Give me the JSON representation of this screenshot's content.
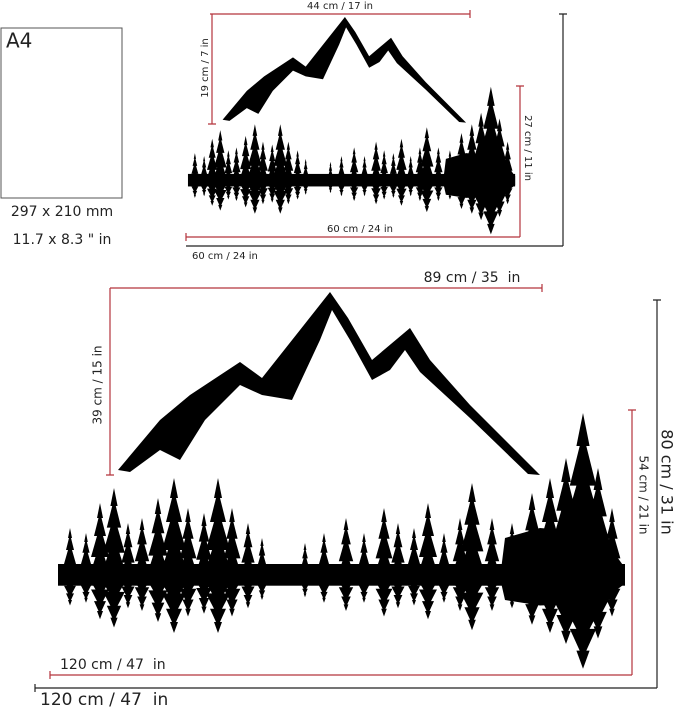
{
  "a4": {
    "label": "A4",
    "size_mm": "297 x 210 mm",
    "size_in": "11.7 x 8.3 \" in"
  },
  "small": {
    "mountain_width": "44 cm / 17 in",
    "mountain_height": "19 cm / 7 in",
    "forest_height": "27 cm / 11 in",
    "forest_width": "60 cm / 24 in",
    "total_width": "60 cm / 24 in"
  },
  "large": {
    "mountain_width": "89 cm / 35  in",
    "mountain_height": "39 cm / 15 in",
    "forest_height": "54 cm / 21 in",
    "total_height": "80 cm / 31 in",
    "forest_width": "120 cm / 47  in",
    "total_width": "120 cm / 47  in"
  }
}
